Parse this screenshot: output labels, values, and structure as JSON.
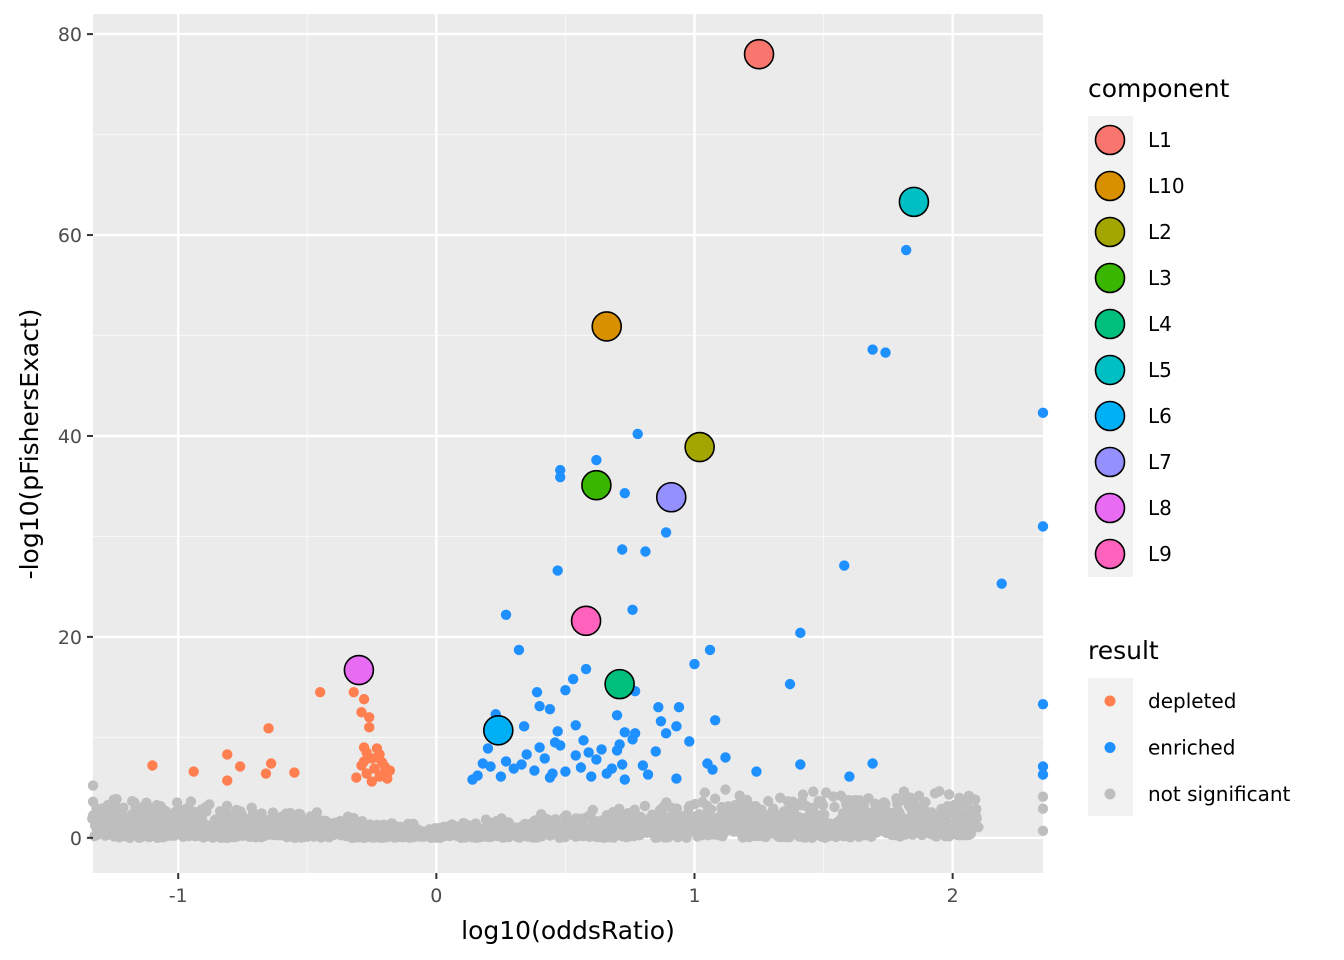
{
  "chart_data": {
    "type": "scatter",
    "xlabel": "log10(oddsRatio)",
    "ylabel": "-log10(pFishersExact)",
    "xlim": [
      -1.33,
      2.35
    ],
    "ylim": [
      -3.5,
      82
    ],
    "x_ticks": [
      -1,
      0,
      1,
      2
    ],
    "x_tick_labels": [
      "-1",
      "0",
      "1",
      "2"
    ],
    "y_ticks": [
      0,
      20,
      40,
      60,
      80
    ],
    "y_tick_labels": [
      "0",
      "20",
      "40",
      "60",
      "80"
    ],
    "grid": true,
    "legend_placement": "right",
    "components": {
      "title": "component",
      "items": [
        {
          "label": "L1",
          "color": "#F8766D",
          "x": 1.25,
          "y": 78.0
        },
        {
          "label": "L10",
          "color": "#D89000",
          "x": 0.66,
          "y": 50.9
        },
        {
          "label": "L2",
          "color": "#A3A500",
          "x": 1.02,
          "y": 38.9
        },
        {
          "label": "L3",
          "color": "#39B600",
          "x": 0.62,
          "y": 35.1
        },
        {
          "label": "L4",
          "color": "#00BF7D",
          "x": 0.71,
          "y": 15.3
        },
        {
          "label": "L5",
          "color": "#00BFC4",
          "x": 1.85,
          "y": 63.3
        },
        {
          "label": "L6",
          "color": "#00B0F6",
          "x": 0.24,
          "y": 10.7
        },
        {
          "label": "L7",
          "color": "#9590FF",
          "x": 0.91,
          "y": 33.9
        },
        {
          "label": "L8",
          "color": "#E76BF3",
          "x": -0.3,
          "y": 16.7
        },
        {
          "label": "L9",
          "color": "#FF62BC",
          "x": 0.58,
          "y": 21.6
        }
      ]
    },
    "result": {
      "title": "result",
      "items": [
        {
          "label": "depleted",
          "color": "#FF7F50"
        },
        {
          "label": "enriched",
          "color": "#1E90FF"
        },
        {
          "label": "not significant",
          "color": "#BEBEBE"
        }
      ]
    },
    "series": [
      {
        "name": "depleted",
        "color": "#FF7F50",
        "points": [
          [
            -1.1,
            7.2
          ],
          [
            -0.94,
            6.6
          ],
          [
            -0.81,
            8.3
          ],
          [
            -0.81,
            5.7
          ],
          [
            -0.76,
            7.1
          ],
          [
            -0.65,
            10.9
          ],
          [
            -0.64,
            7.4
          ],
          [
            -0.66,
            6.4
          ],
          [
            -0.55,
            6.5
          ],
          [
            -0.45,
            14.5
          ],
          [
            -0.32,
            14.5
          ],
          [
            -0.28,
            13.8
          ],
          [
            -0.26,
            12.0
          ],
          [
            -0.29,
            12.5
          ],
          [
            -0.26,
            11.0
          ],
          [
            -0.28,
            9.0
          ],
          [
            -0.27,
            8.5
          ],
          [
            -0.23,
            8.9
          ],
          [
            -0.22,
            8.3
          ],
          [
            -0.25,
            7.9
          ],
          [
            -0.29,
            7.2
          ],
          [
            -0.21,
            7.5
          ],
          [
            -0.24,
            6.9
          ],
          [
            -0.2,
            7.1
          ],
          [
            -0.18,
            6.7
          ],
          [
            -0.27,
            6.4
          ],
          [
            -0.22,
            6.1
          ],
          [
            -0.31,
            6.0
          ],
          [
            -0.19,
            5.9
          ],
          [
            -0.25,
            5.6
          ],
          [
            -0.23,
            8.0
          ],
          [
            -0.28,
            7.6
          ],
          [
            -0.21,
            6.3
          ]
        ]
      },
      {
        "name": "enriched",
        "color": "#1E90FF",
        "points": [
          [
            1.82,
            58.5
          ],
          [
            1.69,
            48.6
          ],
          [
            1.74,
            48.3
          ],
          [
            0.78,
            40.2
          ],
          [
            0.62,
            37.6
          ],
          [
            0.48,
            36.6
          ],
          [
            0.48,
            35.9
          ],
          [
            0.73,
            34.3
          ],
          [
            0.89,
            30.4
          ],
          [
            0.72,
            28.7
          ],
          [
            0.81,
            28.5
          ],
          [
            1.58,
            27.1
          ],
          [
            0.47,
            26.6
          ],
          [
            2.19,
            25.3
          ],
          [
            0.76,
            22.7
          ],
          [
            0.27,
            22.2
          ],
          [
            1.41,
            20.4
          ],
          [
            0.32,
            18.7
          ],
          [
            1.06,
            18.7
          ],
          [
            1.0,
            17.3
          ],
          [
            0.58,
            16.8
          ],
          [
            0.53,
            15.8
          ],
          [
            1.37,
            15.3
          ],
          [
            0.77,
            14.6
          ],
          [
            0.39,
            14.5
          ],
          [
            0.5,
            14.7
          ],
          [
            0.86,
            13.0
          ],
          [
            0.94,
            13.0
          ],
          [
            0.4,
            13.1
          ],
          [
            0.44,
            12.8
          ],
          [
            0.23,
            12.3
          ],
          [
            0.7,
            12.2
          ],
          [
            1.08,
            11.7
          ],
          [
            0.87,
            11.6
          ],
          [
            0.93,
            11.1
          ],
          [
            0.54,
            11.2
          ],
          [
            0.34,
            11.1
          ],
          [
            0.47,
            10.6
          ],
          [
            0.73,
            10.5
          ],
          [
            0.77,
            10.4
          ],
          [
            0.89,
            10.4
          ],
          [
            0.76,
            9.8
          ],
          [
            0.98,
            9.6
          ],
          [
            0.46,
            9.5
          ],
          [
            0.57,
            9.7
          ],
          [
            0.71,
            9.3
          ],
          [
            0.48,
            9.2
          ],
          [
            0.2,
            8.9
          ],
          [
            0.4,
            9.0
          ],
          [
            0.64,
            8.8
          ],
          [
            0.7,
            8.7
          ],
          [
            0.85,
            8.6
          ],
          [
            0.59,
            8.5
          ],
          [
            0.35,
            8.3
          ],
          [
            0.54,
            8.2
          ],
          [
            1.12,
            8.0
          ],
          [
            0.42,
            7.9
          ],
          [
            0.62,
            7.8
          ],
          [
            0.27,
            7.6
          ],
          [
            0.18,
            7.4
          ],
          [
            1.05,
            7.4
          ],
          [
            0.72,
            7.3
          ],
          [
            0.8,
            7.2
          ],
          [
            1.69,
            7.4
          ],
          [
            1.41,
            7.3
          ],
          [
            1.07,
            6.8
          ],
          [
            1.24,
            6.6
          ],
          [
            0.3,
            6.9
          ],
          [
            0.38,
            6.7
          ],
          [
            0.5,
            6.6
          ],
          [
            0.66,
            6.4
          ],
          [
            0.82,
            6.3
          ],
          [
            0.16,
            6.2
          ],
          [
            0.25,
            6.1
          ],
          [
            0.44,
            6.0
          ],
          [
            0.6,
            6.1
          ],
          [
            0.73,
            5.8
          ],
          [
            0.93,
            5.9
          ],
          [
            1.6,
            6.1
          ],
          [
            0.14,
            5.8
          ],
          [
            0.21,
            7.1
          ],
          [
            0.33,
            7.3
          ],
          [
            0.45,
            6.4
          ],
          [
            0.56,
            7.0
          ],
          [
            0.68,
            6.9
          ],
          [
            2.35,
            42.3
          ],
          [
            2.35,
            31.0
          ],
          [
            2.35,
            13.3
          ],
          [
            2.35,
            7.1
          ],
          [
            2.35,
            6.3
          ]
        ]
      },
      {
        "name": "not significant",
        "color": "#BEBEBE",
        "curve": {
          "scale": 0.8,
          "x_from": -1.33,
          "x_to": 2.1
        }
      }
    ]
  }
}
